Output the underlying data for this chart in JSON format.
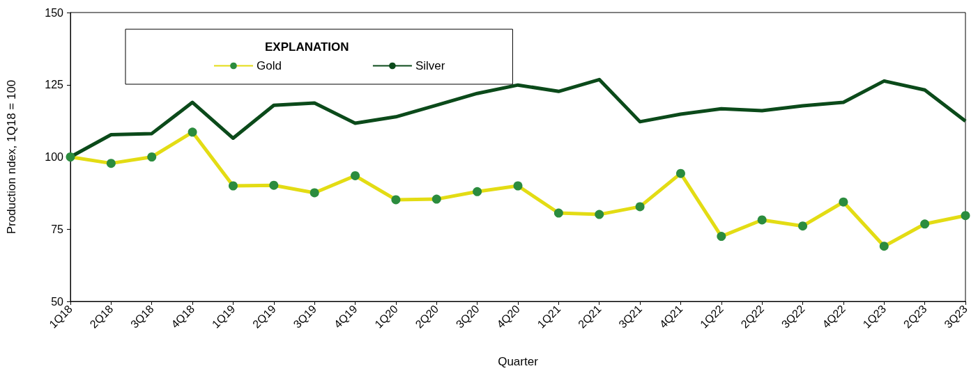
{
  "chart_data": {
    "type": "line",
    "xlabel": "Quarter",
    "ylabel": "Production ndex, 1Q18 = 100",
    "legend_title": "EXPLANATION",
    "legend": "top left",
    "grid": false,
    "categories": [
      "1Q18",
      "2Q18",
      "3Q18",
      "4Q18",
      "1Q19",
      "2Q19",
      "3Q19",
      "4Q19",
      "1Q20",
      "2Q20",
      "3Q20",
      "4Q20",
      "1Q21",
      "2Q21",
      "3Q21",
      "4Q21",
      "1Q22",
      "2Q22",
      "3Q22",
      "4Q22",
      "1Q23",
      "2Q23",
      "3Q23"
    ],
    "ylim": [
      50,
      150
    ],
    "yticks": [
      50,
      75,
      100,
      125,
      150
    ],
    "series": [
      {
        "name": "Gold",
        "color": "#e3dc14",
        "marker": "circle",
        "values": [
          100,
          97.8,
          100,
          108.6,
          90.0,
          90.2,
          87.6,
          93.5,
          85.2,
          85.4,
          88.0,
          90.0,
          80.6,
          80.1,
          82.8,
          94.3,
          72.5,
          78.2,
          76.1,
          84.4,
          69.1,
          76.8,
          79.7
        ]
      },
      {
        "name": "Silver",
        "color": "#0b4a1a",
        "marker": "none",
        "values": [
          100,
          107.7,
          108.1,
          118.9,
          106.5,
          117.9,
          118.7,
          111.7,
          113.9,
          117.9,
          122.0,
          124.9,
          122.7,
          126.8,
          112.2,
          114.8,
          116.7,
          116.0,
          117.7,
          118.9,
          126.3,
          123.2,
          112.4
        ]
      }
    ]
  }
}
